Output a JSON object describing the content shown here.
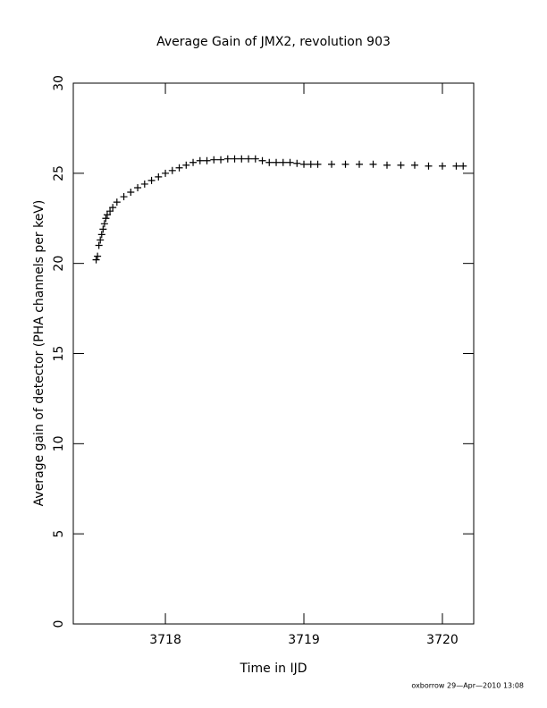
{
  "chart_data": {
    "type": "scatter",
    "title": "Average Gain of JMX2, revolution 903",
    "x_label": "Time in IJD",
    "y_label": "Average gain of detector (PHA channels per keV)",
    "footer": "oxborrow 29—Apr—2010 13:08",
    "marker": "plus",
    "color": "#000000",
    "xlim": [
      3717.335,
      3720.226
    ],
    "xticks": [
      3718,
      3719,
      3720
    ],
    "ylim": [
      0,
      30
    ],
    "yticks": [
      0,
      5,
      10,
      15,
      20,
      25,
      30
    ],
    "x": [
      3717.5,
      3717.51,
      3717.52,
      3717.53,
      3717.54,
      3717.55,
      3717.56,
      3717.57,
      3717.58,
      3717.6,
      3717.62,
      3717.65,
      3717.7,
      3717.75,
      3717.8,
      3717.85,
      3717.9,
      3717.95,
      3718,
      3718.05,
      3718.1,
      3718.15,
      3718.2,
      3718.25,
      3718.3,
      3718.35,
      3718.4,
      3718.45,
      3718.5,
      3718.55,
      3718.6,
      3718.65,
      3718.7,
      3718.75,
      3718.8,
      3718.85,
      3718.9,
      3718.95,
      3719,
      3719.05,
      3719.1,
      3719.2,
      3719.3,
      3719.4,
      3719.5,
      3719.6,
      3719.7,
      3719.8,
      3719.9,
      3720,
      3720.1,
      3720.15
    ],
    "values": [
      20.2,
      20.4,
      21.0,
      21.3,
      21.6,
      21.9,
      22.2,
      22.5,
      22.7,
      22.9,
      23.1,
      23.4,
      23.7,
      23.95,
      24.2,
      24.4,
      24.6,
      24.8,
      25.0,
      25.15,
      25.3,
      25.45,
      25.6,
      25.7,
      25.7,
      25.75,
      25.75,
      25.8,
      25.8,
      25.8,
      25.8,
      25.8,
      25.7,
      25.6,
      25.6,
      25.6,
      25.6,
      25.55,
      25.5,
      25.5,
      25.5,
      25.5,
      25.5,
      25.5,
      25.5,
      25.45,
      25.45,
      25.45,
      25.4,
      25.4,
      25.4,
      25.4
    ]
  }
}
